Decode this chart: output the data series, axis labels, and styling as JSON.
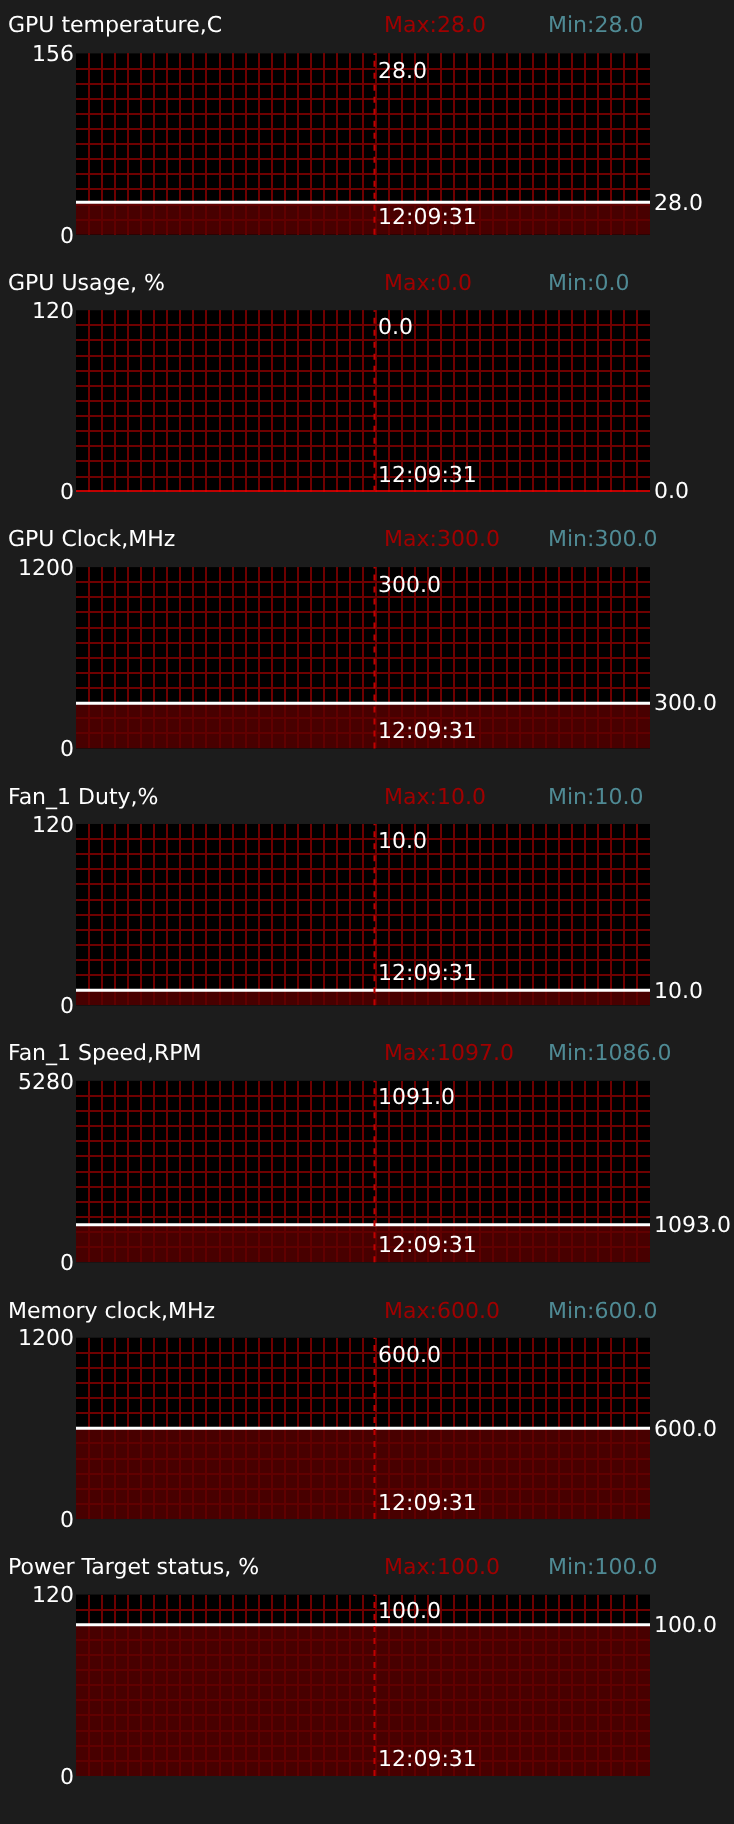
{
  "chart_data": [
    {
      "type": "area",
      "title": "GPU temperature,C",
      "annotations": [
        "Max:28.0",
        "Min:28.0",
        "28.0",
        "12:09:31",
        "28.0"
      ],
      "categories": [
        null,
        null,
        null,
        null,
        null,
        null,
        null,
        null,
        null,
        null,
        null,
        null,
        null,
        null,
        null,
        null,
        null,
        null,
        null,
        null,
        null,
        null,
        null,
        null,
        null,
        null,
        null,
        null,
        null,
        null,
        null,
        null,
        null,
        null,
        null,
        null,
        null,
        null,
        null,
        null,
        null,
        null,
        null,
        null,
        null
      ],
      "series": [
        {
          "color": "#5c0000",
          "values": [
            28,
            28,
            28,
            28,
            28,
            28,
            28,
            28,
            28,
            28,
            28,
            28,
            28,
            28,
            28,
            28,
            28,
            28,
            28,
            28,
            28,
            28,
            28,
            28,
            28,
            28,
            28,
            28,
            28,
            28,
            28,
            28,
            28,
            28,
            28,
            28,
            28,
            28,
            28,
            28,
            28,
            28,
            28,
            28,
            28
          ]
        }
      ],
      "ylim": [
        0,
        156
      ],
      "yticks": [
        0,
        156
      ],
      "grid": true,
      "tick_labels": "y",
      "line_style": "solid"
    },
    {
      "type": "area",
      "title": "GPU Usage, %",
      "annotations": [
        "Max:0.0",
        "Min:0.0",
        "0.0",
        "12:09:31",
        "0.0"
      ],
      "categories": [
        null,
        null,
        null,
        null,
        null,
        null,
        null,
        null,
        null,
        null,
        null,
        null,
        null,
        null,
        null,
        null,
        null,
        null,
        null,
        null,
        null,
        null,
        null,
        null,
        null,
        null,
        null,
        null,
        null,
        null,
        null,
        null,
        null,
        null,
        null,
        null,
        null,
        null,
        null,
        null,
        null,
        null,
        null,
        null,
        null
      ],
      "series": [
        {
          "type": "line",
          "color": "#ff0000",
          "values": [
            0,
            0,
            0,
            0,
            0,
            0,
            0,
            0,
            0,
            0,
            0,
            0,
            0,
            0,
            0,
            0,
            0,
            0,
            0,
            0,
            0,
            0,
            0,
            0,
            0,
            0,
            0,
            0,
            0,
            0,
            0,
            0,
            0,
            0,
            0,
            0,
            0,
            0,
            0,
            0,
            0,
            0,
            0,
            0,
            0
          ]
        }
      ],
      "ylim": [
        0,
        120
      ],
      "yticks": [
        0,
        120
      ],
      "grid": true,
      "tick_labels": "y",
      "line_style": "solid"
    },
    {
      "type": "area",
      "title": "GPU Clock,MHz",
      "annotations": [
        "Max:300.0",
        "Min:300.0",
        "300.0",
        "12:09:31",
        "300.0"
      ],
      "categories": [
        null,
        null,
        null,
        null,
        null,
        null,
        null,
        null,
        null,
        null,
        null,
        null,
        null,
        null,
        null,
        null,
        null,
        null,
        null,
        null,
        null,
        null,
        null,
        null,
        null,
        null,
        null,
        null,
        null,
        null,
        null,
        null,
        null,
        null,
        null,
        null,
        null,
        null,
        null,
        null,
        null,
        null,
        null,
        null,
        null
      ],
      "series": [
        {
          "color": "#5c0000",
          "values": [
            300,
            300,
            300,
            300,
            300,
            300,
            300,
            300,
            300,
            300,
            300,
            300,
            300,
            300,
            300,
            300,
            300,
            300,
            300,
            300,
            300,
            300,
            300,
            300,
            300,
            300,
            300,
            300,
            300,
            300,
            300,
            300,
            300,
            300,
            300,
            300,
            300,
            300,
            300,
            300,
            300,
            300,
            300,
            300,
            300
          ]
        }
      ],
      "ylim": [
        0,
        1200
      ],
      "yticks": [
        0,
        1200
      ],
      "grid": true,
      "tick_labels": "y",
      "line_style": "solid"
    },
    {
      "type": "area",
      "title": "Fan_1 Duty,%",
      "annotations": [
        "Max:10.0",
        "Min:10.0",
        "10.0",
        "12:09:31",
        "10.0"
      ],
      "categories": [
        null,
        null,
        null,
        null,
        null,
        null,
        null,
        null,
        null,
        null,
        null,
        null,
        null,
        null,
        null,
        null,
        null,
        null,
        null,
        null,
        null,
        null,
        null,
        null,
        null,
        null,
        null,
        null,
        null,
        null,
        null,
        null,
        null,
        null,
        null,
        null,
        null,
        null,
        null,
        null,
        null,
        null,
        null,
        null,
        null
      ],
      "series": [
        {
          "color": "#5c0000",
          "values": [
            10,
            10,
            10,
            10,
            10,
            10,
            10,
            10,
            10,
            10,
            10,
            10,
            10,
            10,
            10,
            10,
            10,
            10,
            10,
            10,
            10,
            10,
            10,
            10,
            10,
            10,
            10,
            10,
            10,
            10,
            10,
            10,
            10,
            10,
            10,
            10,
            10,
            10,
            10,
            10,
            10,
            10,
            10,
            10,
            10
          ]
        }
      ],
      "ylim": [
        0,
        120
      ],
      "yticks": [
        0,
        120
      ],
      "grid": true,
      "tick_labels": "y",
      "line_style": "solid"
    },
    {
      "type": "area",
      "title": "Fan_1 Speed,RPM",
      "annotations": [
        "Max:1097.0",
        "Min:1086.0",
        "1091.0",
        "12:09:31",
        "1093.0"
      ],
      "categories": [
        null,
        null,
        null,
        null,
        null,
        null,
        null,
        null,
        null,
        null,
        null,
        null,
        null,
        null,
        null,
        null,
        null,
        null,
        null,
        null,
        null,
        null,
        null,
        null,
        null,
        null,
        null,
        null,
        null,
        null,
        null,
        null,
        null,
        null,
        null,
        null,
        null,
        null,
        null,
        null,
        null,
        null,
        null,
        null,
        null
      ],
      "series": [
        {
          "color": "#5c0000",
          "values": [
            1090,
            1090,
            1090,
            1090,
            1090,
            1090,
            1090,
            1090,
            1090,
            1090,
            1090,
            1090,
            1090,
            1090,
            1090,
            1090,
            1090,
            1090,
            1090,
            1090,
            1090,
            1090,
            1090,
            1090,
            1090,
            1090,
            1090,
            1090,
            1090,
            1090,
            1090,
            1090,
            1090,
            1090,
            1090,
            1090,
            1090,
            1090,
            1090,
            1090,
            1090,
            1090,
            1090,
            1090,
            1090
          ]
        }
      ],
      "ylim": [
        0,
        5280
      ],
      "yticks": [
        0,
        5280
      ],
      "grid": true,
      "tick_labels": "y",
      "line_style": "solid"
    },
    {
      "type": "area",
      "title": "Memory clock,MHz",
      "annotations": [
        "Max:600.0",
        "Min:600.0",
        "600.0",
        "12:09:31",
        "600.0"
      ],
      "categories": [
        null,
        null,
        null,
        null,
        null,
        null,
        null,
        null,
        null,
        null,
        null,
        null,
        null,
        null,
        null,
        null,
        null,
        null,
        null,
        null,
        null,
        null,
        null,
        null,
        null,
        null,
        null,
        null,
        null,
        null,
        null,
        null,
        null,
        null,
        null,
        null,
        null,
        null,
        null,
        null,
        null,
        null,
        null,
        null,
        null
      ],
      "series": [
        {
          "color": "#5c0000",
          "values": [
            600,
            600,
            600,
            600,
            600,
            600,
            600,
            600,
            600,
            600,
            600,
            600,
            600,
            600,
            600,
            600,
            600,
            600,
            600,
            600,
            600,
            600,
            600,
            600,
            600,
            600,
            600,
            600,
            600,
            600,
            600,
            600,
            600,
            600,
            600,
            600,
            600,
            600,
            600,
            600,
            600,
            600,
            600,
            600,
            600
          ]
        }
      ],
      "ylim": [
        0,
        1200
      ],
      "yticks": [
        0,
        1200
      ],
      "grid": true,
      "tick_labels": "y",
      "line_style": "solid"
    },
    {
      "type": "area",
      "title": "Power Target status, %",
      "annotations": [
        "Max:100.0",
        "Min:100.0",
        "100.0",
        "12:09:31",
        "100.0"
      ],
      "categories": [
        null,
        null,
        null,
        null,
        null,
        null,
        null,
        null,
        null,
        null,
        null,
        null,
        null,
        null,
        null,
        null,
        null,
        null,
        null,
        null,
        null,
        null,
        null,
        null,
        null,
        null,
        null,
        null,
        null,
        null,
        null,
        null,
        null,
        null,
        null,
        null,
        null,
        null,
        null,
        null,
        null,
        null,
        null,
        null,
        null
      ],
      "series": [
        {
          "color": "#5c0000",
          "values": [
            100,
            100,
            100,
            100,
            100,
            100,
            100,
            100,
            100,
            100,
            100,
            100,
            100,
            100,
            100,
            100,
            100,
            100,
            100,
            100,
            100,
            100,
            100,
            100,
            100,
            100,
            100,
            100,
            100,
            100,
            100,
            100,
            100,
            100,
            100,
            100,
            100,
            100,
            100,
            100,
            100,
            100,
            100,
            100,
            100
          ]
        }
      ],
      "ylim": [
        0,
        120
      ],
      "yticks": [
        0,
        120
      ],
      "grid": true,
      "tick_labels": "y",
      "line_style": "solid"
    }
  ]
}
